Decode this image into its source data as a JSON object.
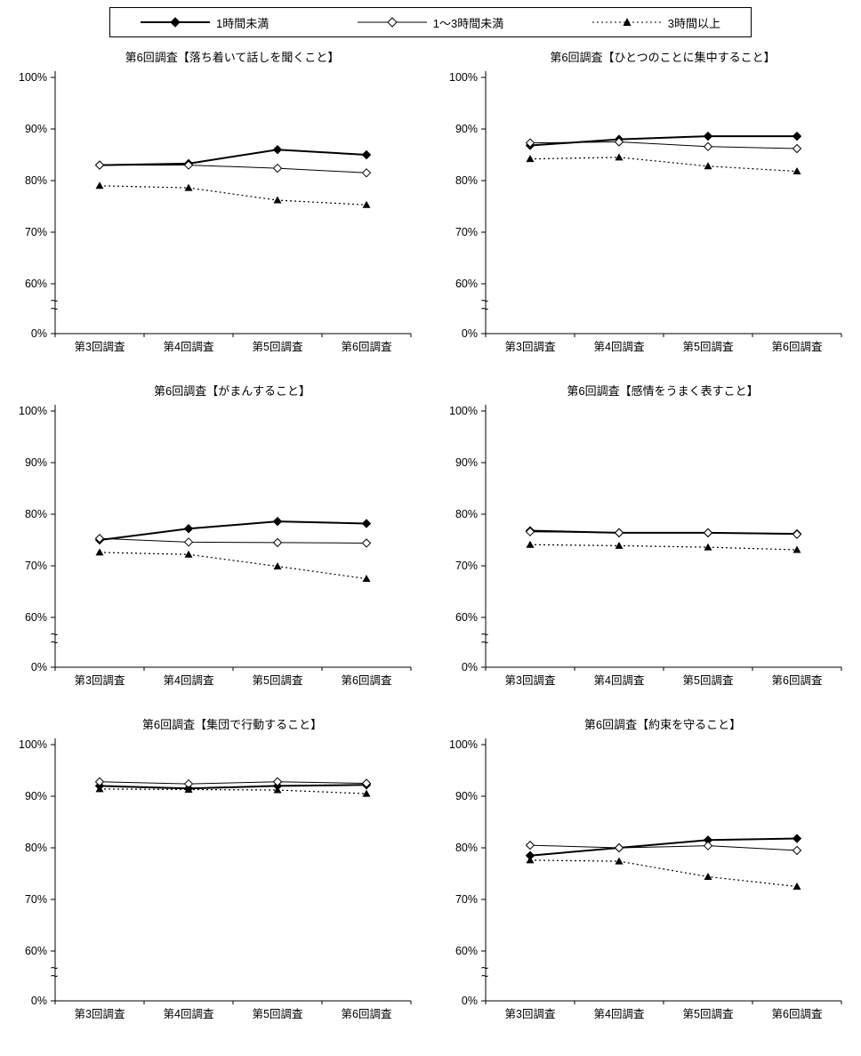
{
  "legend": {
    "items": [
      {
        "label": "1時間未満",
        "marker": "filled-diamond",
        "line": "solid-thick"
      },
      {
        "label": "1〜3時間未満",
        "marker": "open-diamond",
        "line": "solid-thin"
      },
      {
        "label": "3時間以上",
        "marker": "filled-triangle",
        "line": "dotted"
      }
    ]
  },
  "chart_data": [
    {
      "type": "line",
      "title": "第6回調査【落ち着いて話しを聞くこと】",
      "categories": [
        "第3回調査",
        "第4回調査",
        "第5回調査",
        "第6回調査"
      ],
      "series": [
        {
          "name": "1時間未満",
          "values": [
            83,
            83.3,
            86,
            85
          ]
        },
        {
          "name": "1〜3時間未満",
          "values": [
            83,
            83,
            82.4,
            81.5
          ]
        },
        {
          "name": "3時間以上",
          "values": [
            79,
            78.6,
            76.2,
            75.3
          ]
        }
      ],
      "ylim": [
        60,
        100
      ],
      "yticks": [
        100,
        90,
        80,
        70,
        60,
        0
      ],
      "axis_break": true,
      "grid": false,
      "legend_position": "top-shared"
    },
    {
      "type": "line",
      "title": "第6回調査【ひとつのことに集中すること】",
      "categories": [
        "第3回調査",
        "第4回調査",
        "第5回調査",
        "第6回調査"
      ],
      "series": [
        {
          "name": "1時間未満",
          "values": [
            86.8,
            88,
            88.6,
            88.6
          ]
        },
        {
          "name": "1〜3時間未満",
          "values": [
            87.3,
            87.5,
            86.6,
            86.2
          ]
        },
        {
          "name": "3時間以上",
          "values": [
            84.2,
            84.5,
            82.8,
            81.8
          ]
        }
      ],
      "ylim": [
        60,
        100
      ],
      "yticks": [
        100,
        90,
        80,
        70,
        60,
        0
      ],
      "axis_break": true,
      "grid": false,
      "legend_position": "top-shared"
    },
    {
      "type": "line",
      "title": "第6回調査【がまんすること】",
      "categories": [
        "第3回調査",
        "第4回調査",
        "第5回調査",
        "第6回調査"
      ],
      "series": [
        {
          "name": "1時間未満",
          "values": [
            75,
            77.2,
            78.6,
            78.2
          ]
        },
        {
          "name": "1〜3時間未満",
          "values": [
            75.3,
            74.6,
            74.5,
            74.4
          ]
        },
        {
          "name": "3時間以上",
          "values": [
            72.6,
            72.2,
            69.9,
            67.5
          ]
        }
      ],
      "ylim": [
        60,
        100
      ],
      "yticks": [
        100,
        90,
        80,
        70,
        60,
        0
      ],
      "axis_break": true,
      "grid": false,
      "legend_position": "top-shared"
    },
    {
      "type": "line",
      "title": "第6回調査【感情をうまく表すこと】",
      "categories": [
        "第3回調査",
        "第4回調査",
        "第5回調査",
        "第6回調査"
      ],
      "series": [
        {
          "name": "1時間未満",
          "values": [
            76.8,
            76.4,
            76.4,
            76.2
          ]
        },
        {
          "name": "1〜3時間未満",
          "values": [
            76.6,
            76.4,
            76.4,
            76.1
          ]
        },
        {
          "name": "3時間以上",
          "values": [
            74.1,
            73.9,
            73.6,
            73.1
          ]
        }
      ],
      "ylim": [
        60,
        100
      ],
      "yticks": [
        100,
        90,
        80,
        70,
        60,
        0
      ],
      "axis_break": true,
      "grid": false,
      "legend_position": "top-shared"
    },
    {
      "type": "line",
      "title": "第6回調査【集団で行動すること】",
      "categories": [
        "第3回調査",
        "第4回調査",
        "第5回調査",
        "第6回調査"
      ],
      "series": [
        {
          "name": "1時間未満",
          "values": [
            92,
            91.5,
            92,
            92.2
          ]
        },
        {
          "name": "1〜3時間未満",
          "values": [
            92.8,
            92.4,
            92.8,
            92.5
          ]
        },
        {
          "name": "3時間以上",
          "values": [
            91.4,
            91.3,
            91.2,
            90.5
          ]
        }
      ],
      "ylim": [
        60,
        100
      ],
      "yticks": [
        100,
        90,
        80,
        70,
        60,
        0
      ],
      "axis_break": true,
      "grid": false,
      "legend_position": "top-shared"
    },
    {
      "type": "line",
      "title": "第6回調査【約束を守ること】",
      "categories": [
        "第3回調査",
        "第4回調査",
        "第5回調査",
        "第6回調査"
      ],
      "series": [
        {
          "name": "1時間未満",
          "values": [
            78.5,
            80,
            81.5,
            81.8
          ]
        },
        {
          "name": "1〜3時間未満",
          "values": [
            80.5,
            80,
            80.4,
            79.5
          ]
        },
        {
          "name": "3時間以上",
          "values": [
            77.6,
            77.4,
            74.4,
            72.5
          ]
        }
      ],
      "ylim": [
        60,
        100
      ],
      "yticks": [
        100,
        90,
        80,
        70,
        60,
        0
      ],
      "axis_break": true,
      "grid": false,
      "legend_position": "top-shared"
    }
  ]
}
